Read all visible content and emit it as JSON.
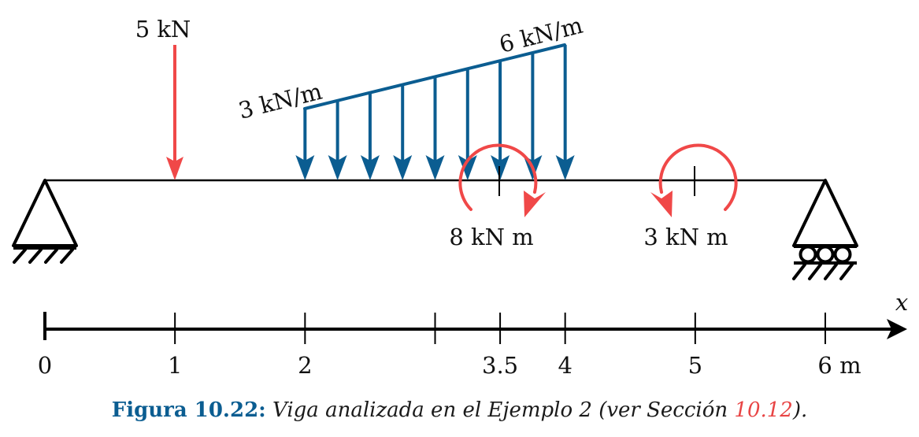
{
  "colors": {
    "point_load": "#f04848",
    "distributed_load": "#0b5d91",
    "moment": "#f04848",
    "beam": "#000000",
    "caption_label": "#0b5d91",
    "caption_ref": "#e84545"
  },
  "beam": {
    "length_m": 6,
    "supports": [
      {
        "type": "pinned",
        "at_m": 0
      },
      {
        "type": "roller",
        "at_m": 6
      }
    ]
  },
  "loads": {
    "point": {
      "at_m": 1,
      "label": "5 kN"
    },
    "distributed": {
      "from_m": 2,
      "to_m": 4,
      "start_label": "3 kN/m",
      "end_label": "6 kN/m",
      "arrow_positions_m": [
        2,
        2.25,
        2.5,
        2.75,
        3,
        3.25,
        3.5,
        3.75,
        4
      ]
    },
    "moments": [
      {
        "at_m": 3.5,
        "label": "8 kN m",
        "direction": "clockwise"
      },
      {
        "at_m": 5,
        "label": "3 kN m",
        "direction": "counterclockwise"
      }
    ]
  },
  "axis": {
    "variable": "x",
    "ticks": [
      {
        "at_m": 0,
        "label": "0"
      },
      {
        "at_m": 1,
        "label": "1"
      },
      {
        "at_m": 2,
        "label": "2"
      },
      {
        "at_m": 3,
        "label": ""
      },
      {
        "at_m": 3.5,
        "label": "3.5"
      },
      {
        "at_m": 4,
        "label": "4"
      },
      {
        "at_m": 5,
        "label": "5"
      },
      {
        "at_m": 6,
        "label": "6 m"
      }
    ]
  },
  "caption": {
    "label": "Figura 10.22:",
    "text": "Viga analizada en el Ejemplo 2 (ver Sección ",
    "ref": "10.12",
    "tail": ")."
  }
}
